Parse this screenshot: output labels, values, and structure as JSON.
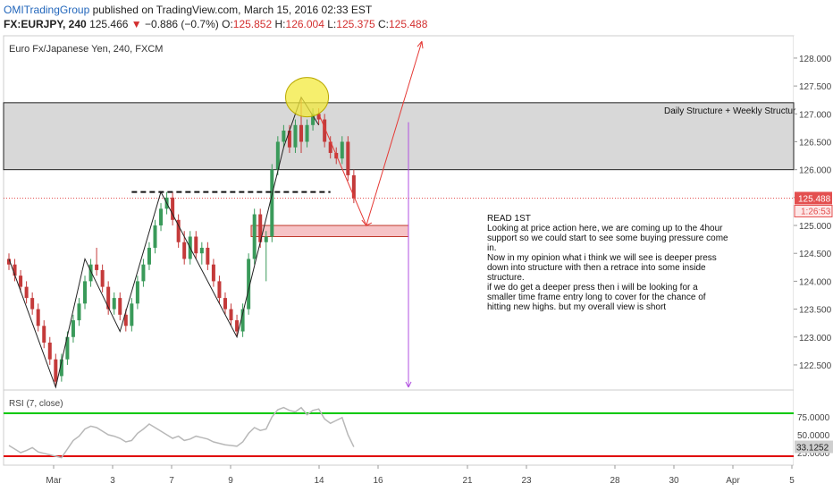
{
  "header": {
    "author": "OMITradingGroup",
    "published": "published on TradingView.com, March 15, 2016 02:33 EST",
    "symbol": "FX:EURJPY, 240",
    "last": "125.466",
    "change_arrow": "▼",
    "change": "−0.886 (−0.7%)",
    "open_label": "O:",
    "open": "125.852",
    "high_label": "H:",
    "high": "126.004",
    "low_label": "L:",
    "low": "125.375",
    "close_label": "C:",
    "close": "125.488"
  },
  "chart_data": {
    "type": "candlestick",
    "title": "Euro Fx/Japanese Yen, 240, FXCM",
    "x_ticks": [
      "Mar",
      "3",
      "7",
      "9",
      "14",
      "16",
      "21",
      "23",
      "28",
      "30",
      "Apr",
      "5"
    ],
    "y_ticks": [
      "122.500",
      "123.000",
      "123.500",
      "124.000",
      "124.500",
      "125.000",
      "125.500",
      "126.000",
      "126.500",
      "127.000",
      "127.500",
      "128.000"
    ],
    "ylim": [
      122.05,
      128.4
    ],
    "current_price_label": "125.488",
    "countdown_label": "1:26:53",
    "candles": [
      [
        124.4,
        124.5,
        124.2,
        124.3
      ],
      [
        124.3,
        124.4,
        124.0,
        124.1
      ],
      [
        124.1,
        124.2,
        123.8,
        123.9
      ],
      [
        123.9,
        124.0,
        123.6,
        123.7
      ],
      [
        123.7,
        123.8,
        123.4,
        123.5
      ],
      [
        123.5,
        123.6,
        123.1,
        123.2
      ],
      [
        123.2,
        123.3,
        122.8,
        122.9
      ],
      [
        122.9,
        123.0,
        122.5,
        122.6
      ],
      [
        122.6,
        122.7,
        122.1,
        122.2
      ],
      [
        122.3,
        122.7,
        122.2,
        122.6
      ],
      [
        122.6,
        123.1,
        122.5,
        123.0
      ],
      [
        123.0,
        123.4,
        122.9,
        123.3
      ],
      [
        123.3,
        123.7,
        123.2,
        123.6
      ],
      [
        123.6,
        124.1,
        123.5,
        124.0
      ],
      [
        124.0,
        124.4,
        123.9,
        124.3
      ],
      [
        124.3,
        124.6,
        124.1,
        124.2
      ],
      [
        124.2,
        124.3,
        123.8,
        123.9
      ],
      [
        123.9,
        124.0,
        123.4,
        123.5
      ],
      [
        123.5,
        123.8,
        123.4,
        123.7
      ],
      [
        123.7,
        123.8,
        123.3,
        123.4
      ],
      [
        123.4,
        123.5,
        123.1,
        123.2
      ],
      [
        123.2,
        123.7,
        123.1,
        123.6
      ],
      [
        123.6,
        124.1,
        123.5,
        124.0
      ],
      [
        124.0,
        124.4,
        123.9,
        124.3
      ],
      [
        124.3,
        124.7,
        124.2,
        124.6
      ],
      [
        124.6,
        125.1,
        124.5,
        125.0
      ],
      [
        125.0,
        125.4,
        124.9,
        125.3
      ],
      [
        125.3,
        125.6,
        125.2,
        125.5
      ],
      [
        125.5,
        125.6,
        125.0,
        125.1
      ],
      [
        125.1,
        125.2,
        124.6,
        124.7
      ],
      [
        124.7,
        124.9,
        124.3,
        124.4
      ],
      [
        124.4,
        124.9,
        124.3,
        124.8
      ],
      [
        124.8,
        124.9,
        124.4,
        124.5
      ],
      [
        124.5,
        124.7,
        124.3,
        124.6
      ],
      [
        124.6,
        124.7,
        124.2,
        124.3
      ],
      [
        124.3,
        124.4,
        123.9,
        124.0
      ],
      [
        124.0,
        124.1,
        123.6,
        123.7
      ],
      [
        123.7,
        123.8,
        123.4,
        123.5
      ],
      [
        123.5,
        123.6,
        123.2,
        123.3
      ],
      [
        123.3,
        123.4,
        123.0,
        123.1
      ],
      [
        123.1,
        123.6,
        123.0,
        123.5
      ],
      [
        123.5,
        124.5,
        123.4,
        124.4
      ],
      [
        124.4,
        125.3,
        124.3,
        125.2
      ],
      [
        125.2,
        125.3,
        124.6,
        124.7
      ],
      [
        124.7,
        124.9,
        124.0,
        124.8
      ],
      [
        124.8,
        126.1,
        124.7,
        126.0
      ],
      [
        126.0,
        126.6,
        125.9,
        126.5
      ],
      [
        126.5,
        126.8,
        126.4,
        126.7
      ],
      [
        126.7,
        126.8,
        126.3,
        126.4
      ],
      [
        126.4,
        126.9,
        126.3,
        126.8
      ],
      [
        126.8,
        127.3,
        126.3,
        126.5
      ],
      [
        126.5,
        126.9,
        126.4,
        126.8
      ],
      [
        126.8,
        127.1,
        126.7,
        127.0
      ],
      [
        127.0,
        127.1,
        126.8,
        126.9
      ],
      [
        126.9,
        127.0,
        126.4,
        126.5
      ],
      [
        126.5,
        126.6,
        126.2,
        126.3
      ],
      [
        126.3,
        126.4,
        126.1,
        126.2
      ],
      [
        126.2,
        126.6,
        126.1,
        126.5
      ],
      [
        126.5,
        126.6,
        125.8,
        125.9
      ],
      [
        125.9,
        126.0,
        125.4,
        125.49
      ]
    ],
    "support_zone": [
      125.0,
      124.8
    ],
    "structure_zone": [
      127.2,
      126.0
    ],
    "structure_label": "Daily Structure + Weekly Structur",
    "rsi": {
      "label": "RSI (7, close)",
      "y_ticks": [
        "75.0000",
        "50.0000",
        "25.0000"
      ],
      "upper_line": 80,
      "lower_line": 20,
      "current_label": "33.1252",
      "values": [
        35,
        30,
        25,
        28,
        32,
        26,
        24,
        22,
        20,
        18,
        30,
        42,
        48,
        58,
        62,
        60,
        55,
        50,
        48,
        45,
        40,
        42,
        52,
        58,
        65,
        60,
        55,
        50,
        45,
        48,
        42,
        44,
        48,
        46,
        44,
        40,
        38,
        36,
        35,
        34,
        40,
        52,
        60,
        56,
        58,
        75,
        85,
        88,
        84,
        82,
        88,
        78,
        84,
        86,
        72,
        66,
        70,
        74,
        50,
        33.1
      ]
    }
  },
  "note": {
    "title": "READ 1ST",
    "lines": [
      "Looking at price action here, we are coming up to the 4hour",
      "support so we could start to see some buying pressure come",
      "in.",
      "Now in my opinion what i think we will see is deeper press",
      "down into structure with then a retrace into some inside",
      "structure.",
      "if we do get a deeper press then i will be looking for a",
      "smaller time frame entry long to cover for the chance of",
      "hitting new highs. but my overall view is short"
    ]
  },
  "colors": {
    "bull": "#3a9a5a",
    "bear": "#c43a3a",
    "zone_gray": "#d8d8d8",
    "support_fill": "#f6c3c6",
    "price_label": "#e34f4f",
    "arrow_red": "#e53935",
    "arrow_purple": "#b14fe0",
    "rsi_upper": "#00c800",
    "rsi_lower": "#e00000"
  }
}
